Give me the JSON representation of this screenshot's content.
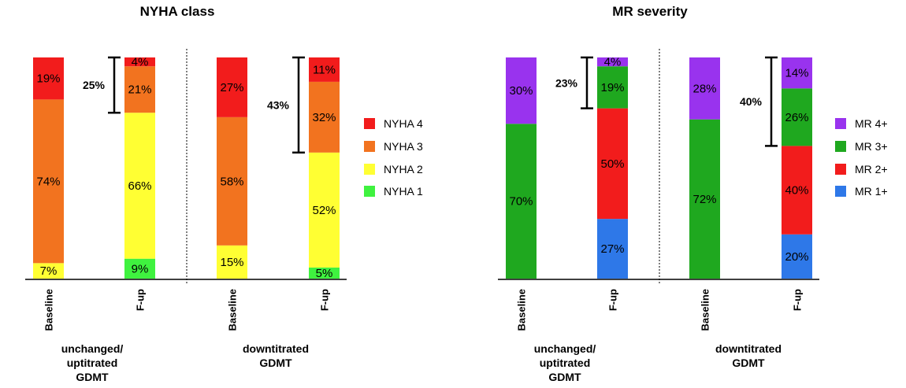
{
  "chart_data": [
    {
      "type": "bar",
      "stacked": true,
      "title": "NYHA class",
      "categories": [
        "Baseline",
        "F-up",
        "Baseline",
        "F-up"
      ],
      "groups": [
        {
          "label_lines": [
            "unchanged/",
            "uptitrated",
            "GDMT"
          ]
        },
        {
          "label_lines": [
            "downtitrated",
            "GDMT"
          ]
        }
      ],
      "series": [
        {
          "name": "NYHA 1",
          "color": "#3ff23f",
          "values": [
            0,
            9,
            0,
            5
          ],
          "labels": [
            "",
            "9%",
            "",
            "5%"
          ]
        },
        {
          "name": "NYHA 2",
          "color": "#ffff33",
          "values": [
            7,
            66,
            15,
            52
          ],
          "labels": [
            "7%",
            "66%",
            "15%",
            "52%"
          ]
        },
        {
          "name": "NYHA 3",
          "color": "#f2731f",
          "values": [
            74,
            21,
            58,
            32
          ],
          "labels": [
            "74%",
            "21%",
            "58%",
            "32%"
          ]
        },
        {
          "name": "NYHA 4",
          "color": "#f21c1c",
          "values": [
            19,
            4,
            27,
            11
          ],
          "labels": [
            "19%",
            "4%",
            "27%",
            "11%"
          ]
        }
      ],
      "legend_order": [
        "NYHA 4",
        "NYHA 3",
        "NYHA 2",
        "NYHA 1"
      ],
      "annotations": [
        {
          "text": "25%",
          "bar": 1,
          "from": 75,
          "to": 100
        },
        {
          "text": "43%",
          "bar": 3,
          "from": 57,
          "to": 100
        }
      ],
      "ylim": [
        0,
        100
      ],
      "legend": "right"
    },
    {
      "type": "bar",
      "stacked": true,
      "title": "MR severity",
      "categories": [
        "Baseline",
        "F-up",
        "Baseline",
        "F-up"
      ],
      "groups": [
        {
          "label_lines": [
            "unchanged/",
            "uptitrated",
            "GDMT"
          ]
        },
        {
          "label_lines": [
            "downtitrated",
            "GDMT"
          ]
        }
      ],
      "series": [
        {
          "name": "MR 1+",
          "color": "#2e78e8",
          "values": [
            0,
            27,
            0,
            20
          ],
          "labels": [
            "",
            "27%",
            "",
            "20%"
          ]
        },
        {
          "name": "MR 2+",
          "color": "#f21c1c",
          "values": [
            0,
            50,
            0,
            40
          ],
          "labels": [
            "",
            "50%",
            "",
            "40%"
          ]
        },
        {
          "name": "MR 3+",
          "color": "#1fa81f",
          "values": [
            70,
            19,
            72,
            26
          ],
          "labels": [
            "70%",
            "19%",
            "72%",
            "26%"
          ]
        },
        {
          "name": "MR 4+",
          "color": "#9933ee",
          "values": [
            30,
            4,
            28,
            14
          ],
          "labels": [
            "30%",
            "4%",
            "28%",
            "14%"
          ]
        }
      ],
      "legend_order": [
        "MR 4+",
        "MR 3+",
        "MR 2+",
        "MR 1+"
      ],
      "annotations": [
        {
          "text": "23%",
          "bar": 1,
          "from": 77,
          "to": 100
        },
        {
          "text": "40%",
          "bar": 3,
          "from": 60,
          "to": 100
        }
      ],
      "ylim": [
        0,
        100
      ],
      "legend": "right"
    }
  ]
}
